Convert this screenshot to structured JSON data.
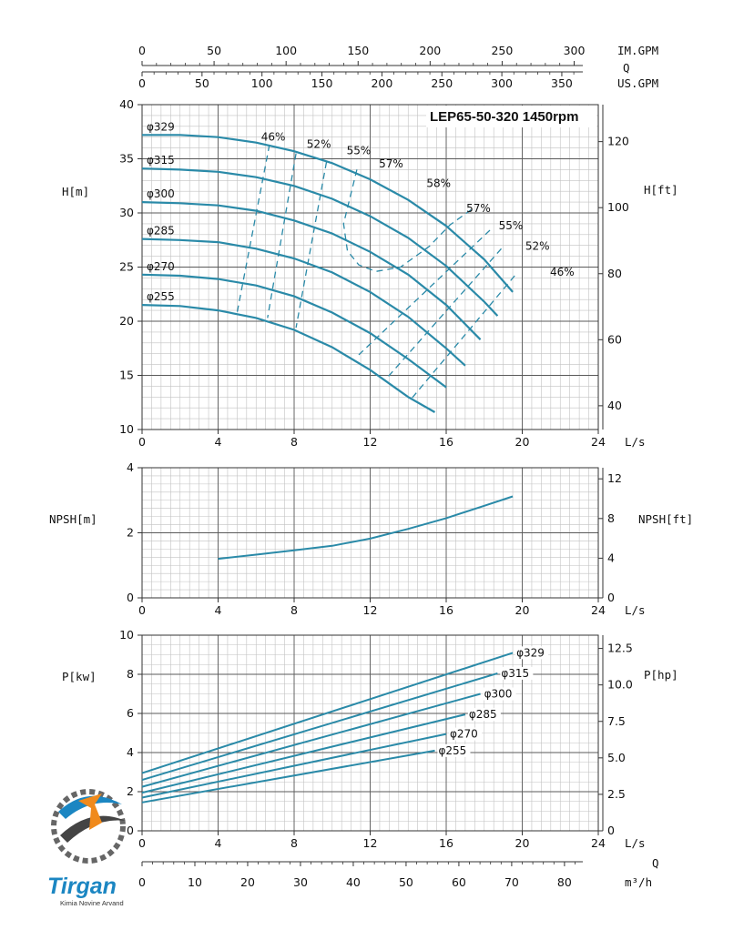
{
  "title": "LEP65-50-320 1450rpm",
  "colors": {
    "curve": "#2a8aa8",
    "grid_major": "#5a5a5a",
    "grid_minor": "#c2c2c2",
    "text": "#111111"
  },
  "top_axes": {
    "imp_gpm": {
      "label": "IM.GPM",
      "ticks": [
        "0",
        "50",
        "100",
        "150",
        "200",
        "250",
        "300"
      ]
    },
    "q_label": "Q",
    "us_gpm": {
      "label": "US.GPM",
      "ticks": [
        "0",
        "50",
        "100",
        "150",
        "200",
        "250",
        "300",
        "350"
      ]
    }
  },
  "bottom_axes": {
    "ls": {
      "label": "L/s",
      "ticks": [
        "0",
        "4",
        "8",
        "12",
        "16",
        "20",
        "24"
      ]
    },
    "q_label": "Q",
    "m3h": {
      "label": "m³/h",
      "ticks": [
        "0",
        "10",
        "20",
        "30",
        "40",
        "50",
        "60",
        "70",
        "80"
      ]
    }
  },
  "logo": {
    "name": "Tirgan",
    "tagline": "Kimia Novine Arvand"
  },
  "chart_data": [
    {
      "type": "line",
      "name": "head",
      "xlabel": "L/s",
      "ylabel": "H[m]",
      "y2label": "H[ft]",
      "xlim": [
        0,
        24
      ],
      "ylim": [
        10,
        40
      ],
      "y2lim": [
        32.8,
        131.2
      ],
      "x_ticks": [
        "0",
        "4",
        "8",
        "12",
        "16",
        "20",
        "24"
      ],
      "y_ticks": [
        "10",
        "15",
        "20",
        "25",
        "30",
        "35",
        "40"
      ],
      "y2_ticks": [
        "40",
        "60",
        "80",
        "100",
        "120"
      ],
      "grid": true,
      "series": [
        {
          "name": "φ329",
          "x": [
            0,
            2,
            4,
            6,
            8,
            10,
            12,
            14,
            16,
            18,
            19.5
          ],
          "y": [
            37.2,
            37.2,
            37.0,
            36.5,
            35.7,
            34.6,
            33.1,
            31.2,
            28.8,
            25.7,
            22.7
          ]
        },
        {
          "name": "φ315",
          "x": [
            0,
            2,
            4,
            6,
            8,
            10,
            12,
            14,
            16,
            18,
            18.7
          ],
          "y": [
            34.1,
            34.0,
            33.8,
            33.3,
            32.5,
            31.3,
            29.7,
            27.7,
            25.1,
            21.8,
            20.5
          ]
        },
        {
          "name": "φ300",
          "x": [
            0,
            2,
            4,
            6,
            8,
            10,
            12,
            14,
            16,
            17.8
          ],
          "y": [
            31.0,
            30.9,
            30.7,
            30.2,
            29.3,
            28.1,
            26.4,
            24.3,
            21.5,
            18.3
          ]
        },
        {
          "name": "φ285",
          "x": [
            0,
            2,
            4,
            6,
            8,
            10,
            12,
            14,
            16,
            17.0
          ],
          "y": [
            27.6,
            27.5,
            27.3,
            26.7,
            25.8,
            24.5,
            22.7,
            20.4,
            17.5,
            15.9
          ]
        },
        {
          "name": "φ270",
          "x": [
            0,
            2,
            4,
            6,
            8,
            10,
            12,
            14,
            16.0
          ],
          "y": [
            24.3,
            24.2,
            23.9,
            23.3,
            22.3,
            20.8,
            18.9,
            16.5,
            13.9
          ]
        },
        {
          "name": "φ255",
          "x": [
            0,
            2,
            4,
            6,
            8,
            10,
            12,
            14,
            15.4
          ],
          "y": [
            21.5,
            21.4,
            21.0,
            20.3,
            19.2,
            17.6,
            15.5,
            13.0,
            11.6
          ]
        }
      ],
      "efficiency_lines": [
        {
          "label": "46%",
          "label_at": [
            6.9,
            36.7
          ],
          "x": [
            6.7,
            5.0
          ],
          "y": [
            36.3,
            20.8
          ]
        },
        {
          "label": "52%",
          "label_at": [
            9.3,
            36.0
          ],
          "x": [
            8.1,
            6.6
          ],
          "y": [
            35.5,
            20.3
          ]
        },
        {
          "label": "55%",
          "label_at": [
            11.4,
            35.4
          ],
          "x": [
            9.7,
            8.1
          ],
          "y": [
            34.7,
            19.4
          ]
        },
        {
          "label": "57%",
          "label_at": [
            13.1,
            34.2
          ],
          "x": [
            11.3,
            10.6,
            10.8,
            11.4,
            12.3,
            13.6,
            15.1,
            16.2,
            17.4
          ],
          "y": [
            34.0,
            29.0,
            26.5,
            25.2,
            24.6,
            25.0,
            26.9,
            28.9,
            30.4
          ]
        },
        {
          "label": "58%",
          "label_at": [
            15.6,
            32.4
          ],
          "x": [],
          "y": []
        },
        {
          "label": "57%",
          "label_at": [
            17.7,
            30.1
          ],
          "x": [],
          "y": []
        },
        {
          "label": "55%",
          "label_at": [
            19.4,
            28.5
          ],
          "x": [
            18.3,
            11.4
          ],
          "y": [
            28.4,
            16.9
          ]
        },
        {
          "label": "52%",
          "label_at": [
            20.8,
            26.6
          ],
          "x": [
            18.9,
            12.8
          ],
          "y": [
            26.7,
            14.6
          ]
        },
        {
          "label": "46%",
          "label_at": [
            22.1,
            24.2
          ],
          "x": [
            19.6,
            14.1
          ],
          "y": [
            24.2,
            12.7
          ]
        }
      ]
    },
    {
      "type": "line",
      "name": "npsh",
      "xlabel": "L/s",
      "ylabel": "NPSH[m]",
      "y2label": "NPSH[ft]",
      "xlim": [
        0,
        24
      ],
      "ylim": [
        0,
        4
      ],
      "y2lim": [
        0,
        13.12
      ],
      "x_ticks": [
        "0",
        "4",
        "8",
        "12",
        "16",
        "20",
        "24"
      ],
      "y_ticks": [
        "0",
        "2",
        "4"
      ],
      "y2_ticks": [
        "0",
        "4",
        "8",
        "12"
      ],
      "grid": true,
      "series": [
        {
          "name": "NPSH",
          "x": [
            4,
            6,
            8,
            10,
            12,
            14,
            16,
            18,
            19.5
          ],
          "y": [
            1.2,
            1.33,
            1.46,
            1.6,
            1.82,
            2.12,
            2.45,
            2.83,
            3.12
          ]
        }
      ]
    },
    {
      "type": "line",
      "name": "power",
      "xlabel": "L/s",
      "ylabel": "P[kw]",
      "y2label": "P[hp]",
      "xlim": [
        0,
        24
      ],
      "ylim": [
        0,
        10
      ],
      "y2lim": [
        0,
        13.41
      ],
      "x_ticks": [
        "0",
        "4",
        "8",
        "12",
        "16",
        "20",
        "24"
      ],
      "y_ticks": [
        "0",
        "2",
        "4",
        "6",
        "8",
        "10"
      ],
      "y2_ticks": [
        "0",
        "2.5",
        "5.0",
        "7.5",
        "10.0",
        "12.5"
      ],
      "grid": true,
      "series": [
        {
          "name": "φ329",
          "x": [
            0,
            19.5
          ],
          "y": [
            2.95,
            9.1
          ]
        },
        {
          "name": "φ315",
          "x": [
            0,
            18.7
          ],
          "y": [
            2.6,
            8.05
          ]
        },
        {
          "name": "φ300",
          "x": [
            0,
            17.8
          ],
          "y": [
            2.25,
            7.0
          ]
        },
        {
          "name": "φ285",
          "x": [
            0,
            17.0
          ],
          "y": [
            1.95,
            5.95
          ]
        },
        {
          "name": "φ270",
          "x": [
            0,
            16.0
          ],
          "y": [
            1.7,
            4.95
          ]
        },
        {
          "name": "φ255",
          "x": [
            0,
            15.4
          ],
          "y": [
            1.45,
            4.1
          ]
        }
      ]
    }
  ]
}
